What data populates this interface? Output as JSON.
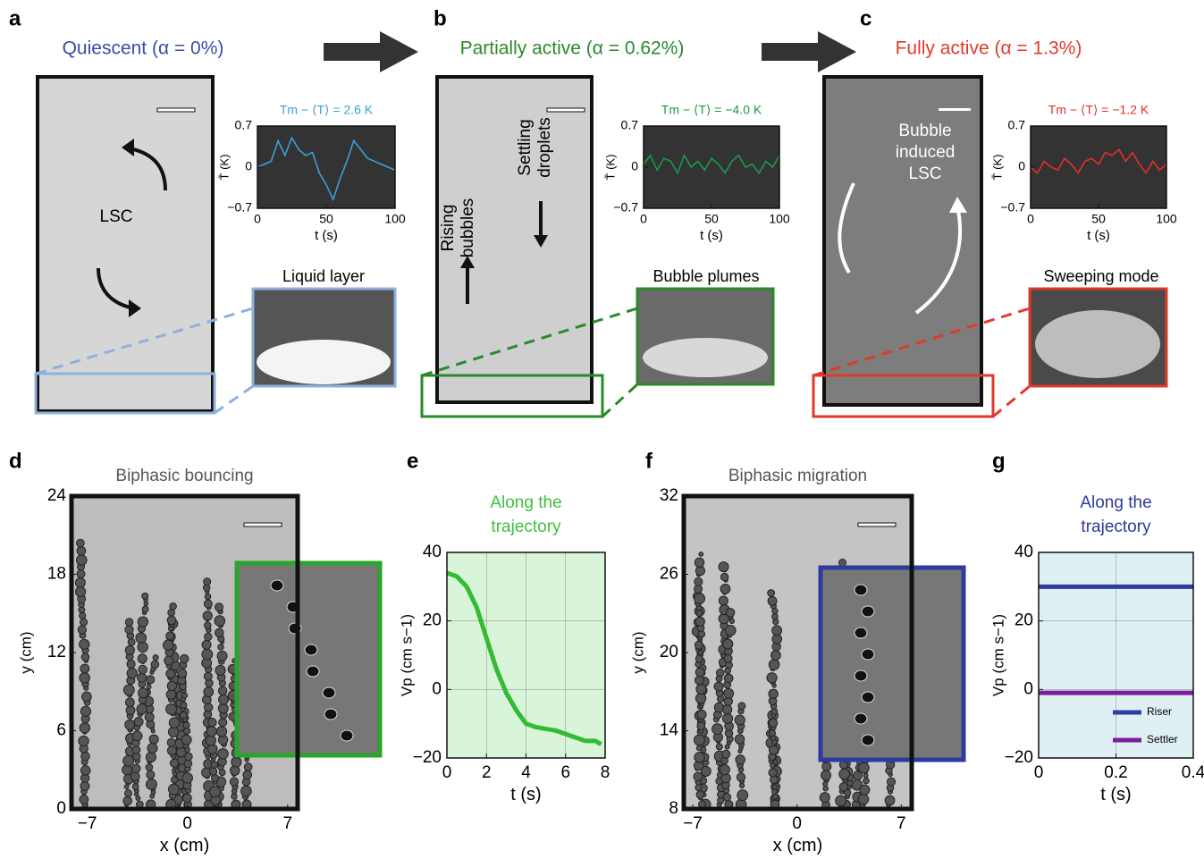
{
  "panels": [
    {
      "letter": "a",
      "title": "Quiescent (α = 0%)",
      "labels": [
        [
          "LSC"
        ]
      ],
      "inset_title": "Liquid layer"
    },
    {
      "letter": "b",
      "title": "Partially active (α = 0.62%)",
      "labels": [
        [
          "Rising",
          "bubbles"
        ],
        [
          "Settling",
          "droplets"
        ]
      ],
      "inset_title": "Bubble plumes"
    },
    {
      "letter": "c",
      "title": "Fully active (α = 1.3%)",
      "labels": [
        [
          "Bubble",
          "induced",
          "LSC"
        ]
      ],
      "inset_title": "Sweeping mode"
    },
    {
      "letter": "d"
    },
    {
      "letter": "e"
    },
    {
      "letter": "f"
    },
    {
      "letter": "g"
    }
  ],
  "chart_data": [
    {
      "type": "line",
      "title": "Tm − ⟨T⟩ = 2.6 K",
      "xlabel": "t (s)",
      "ylabel": "T̄ (K)",
      "background": "#333333",
      "x": [
        0,
        5,
        10,
        15,
        20,
        25,
        30,
        35,
        40,
        45,
        50,
        55,
        60,
        65,
        70,
        75,
        80,
        85,
        90,
        95,
        100
      ],
      "series": [
        {
          "color": "#3aa0d8",
          "values": [
            0,
            0.05,
            0.1,
            0.45,
            0.2,
            0.5,
            0.3,
            0.2,
            0.25,
            -0.1,
            -0.3,
            -0.55,
            -0.2,
            0.1,
            0.45,
            0.3,
            0.15,
            0.1,
            0.05,
            0,
            -0.05
          ]
        }
      ],
      "xlim": [
        0,
        100
      ],
      "ylim": [
        -0.7,
        0.7
      ],
      "xticks": [
        0,
        50,
        100
      ],
      "yticks": [
        {
          "value": -0.7,
          "label": "−0.7"
        },
        0,
        0.7
      ]
    },
    {
      "type": "line",
      "title": "Tm − ⟨T⟩ = −4.0 K",
      "xlabel": "t (s)",
      "ylabel": "T̄ (K)",
      "background": "#333333",
      "x": [
        0,
        5,
        10,
        15,
        20,
        25,
        30,
        35,
        40,
        45,
        50,
        55,
        60,
        65,
        70,
        75,
        80,
        85,
        90,
        95,
        100
      ],
      "series": [
        {
          "color": "#1a9a4a",
          "values": [
            0.05,
            0.2,
            -0.05,
            0.15,
            0.1,
            -0.1,
            0.2,
            0,
            0.1,
            -0.05,
            0.15,
            0.05,
            -0.1,
            0.1,
            0.2,
            0,
            0.05,
            -0.1,
            0.1,
            0,
            0.2
          ]
        }
      ],
      "xlim": [
        0,
        100
      ],
      "ylim": [
        -0.7,
        0.7
      ],
      "xticks": [
        0,
        50,
        100
      ],
      "yticks": [
        {
          "value": -0.7,
          "label": "−0.7"
        },
        0,
        0.7
      ]
    },
    {
      "type": "line",
      "title": "Tm − ⟨T⟩ = −1.2 K",
      "xlabel": "t (s)",
      "ylabel": "T̄ (K)",
      "background": "#333333",
      "x": [
        0,
        5,
        10,
        15,
        20,
        25,
        30,
        35,
        40,
        45,
        50,
        55,
        60,
        65,
        70,
        75,
        80,
        85,
        90,
        95,
        100
      ],
      "series": [
        {
          "color": "#e0302a",
          "values": [
            0,
            -0.1,
            0.1,
            0,
            -0.05,
            0.15,
            0.05,
            -0.1,
            0.1,
            0.15,
            0.05,
            0.25,
            0.2,
            0.3,
            0.1,
            0.25,
            0.05,
            -0.1,
            0.1,
            -0.05,
            0.05
          ]
        }
      ],
      "xlim": [
        0,
        100
      ],
      "ylim": [
        -0.7,
        0.7
      ],
      "xticks": [
        0,
        50,
        100
      ],
      "yticks": [
        {
          "value": -0.7,
          "label": "−0.7"
        },
        0,
        0.7
      ]
    },
    {
      "type": "image",
      "title": "Biphasic bouncing",
      "title_color": "#555555",
      "xlabel": "x (cm)",
      "ylabel": "y (cm)",
      "background": "#bdbdbd",
      "xlim": [
        -8.1,
        7.7
      ],
      "ylim": [
        0,
        24
      ],
      "xticks": [
        {
          "value": -7,
          "label": "−7"
        },
        0,
        7
      ],
      "yticks": [
        0,
        6,
        12,
        18,
        24
      ]
    },
    {
      "type": "line",
      "title": [
        "Along the",
        "trajectory"
      ],
      "title_color": "#3fbf3f",
      "xlabel": "t (s)",
      "ylabel": "Vp (cm s−1)",
      "background": "#d9f5d9",
      "grid": true,
      "x": [
        0,
        0.5,
        1,
        1.5,
        2,
        2.5,
        3,
        3.5,
        4,
        4.5,
        5,
        5.5,
        6,
        6.5,
        7,
        7.5,
        7.8
      ],
      "series": [
        {
          "color": "#33bb33",
          "values": [
            34,
            33,
            30,
            24,
            15,
            6,
            -1,
            -6,
            -10,
            -11,
            -11.5,
            -12,
            -13,
            -14,
            -15,
            -15,
            -16
          ]
        }
      ],
      "xlim": [
        0,
        8
      ],
      "ylim": [
        -20,
        40
      ],
      "xticks": [
        0,
        2,
        4,
        6,
        8
      ],
      "yticks": [
        {
          "value": -20,
          "label": "−20"
        },
        0,
        20,
        40
      ]
    },
    {
      "type": "image",
      "title": "Biphasic migration",
      "title_color": "#555555",
      "xlabel": "x (cm)",
      "ylabel": "y (cm)",
      "background": "#c4c4c4",
      "xlim": [
        -7.6,
        7.7
      ],
      "ylim": [
        8,
        32
      ],
      "xticks": [
        {
          "value": -7,
          "label": "−7"
        },
        0,
        7
      ],
      "yticks": [
        8,
        14,
        20,
        26,
        32
      ]
    },
    {
      "type": "line",
      "title": [
        "Along the",
        "trajectory"
      ],
      "title_color": "#2d3a9e",
      "xlabel": "t (s)",
      "ylabel": "Vp (cm s−1)",
      "background": "#dff0f5",
      "grid": true,
      "legend": "lower right",
      "x": [
        0,
        0.4
      ],
      "series": [
        {
          "name": "Riser",
          "color": "#2e3d9e",
          "values": [
            30,
            30
          ]
        },
        {
          "name": "Settler",
          "color": "#7a1f9a",
          "values": [
            -1,
            -1
          ]
        }
      ],
      "xlim": [
        0,
        0.4
      ],
      "ylim": [
        -20,
        40
      ],
      "xticks": [
        0,
        0.2,
        0.4
      ],
      "yticks": [
        {
          "value": -20,
          "label": "−20"
        },
        0,
        20,
        40
      ]
    }
  ]
}
